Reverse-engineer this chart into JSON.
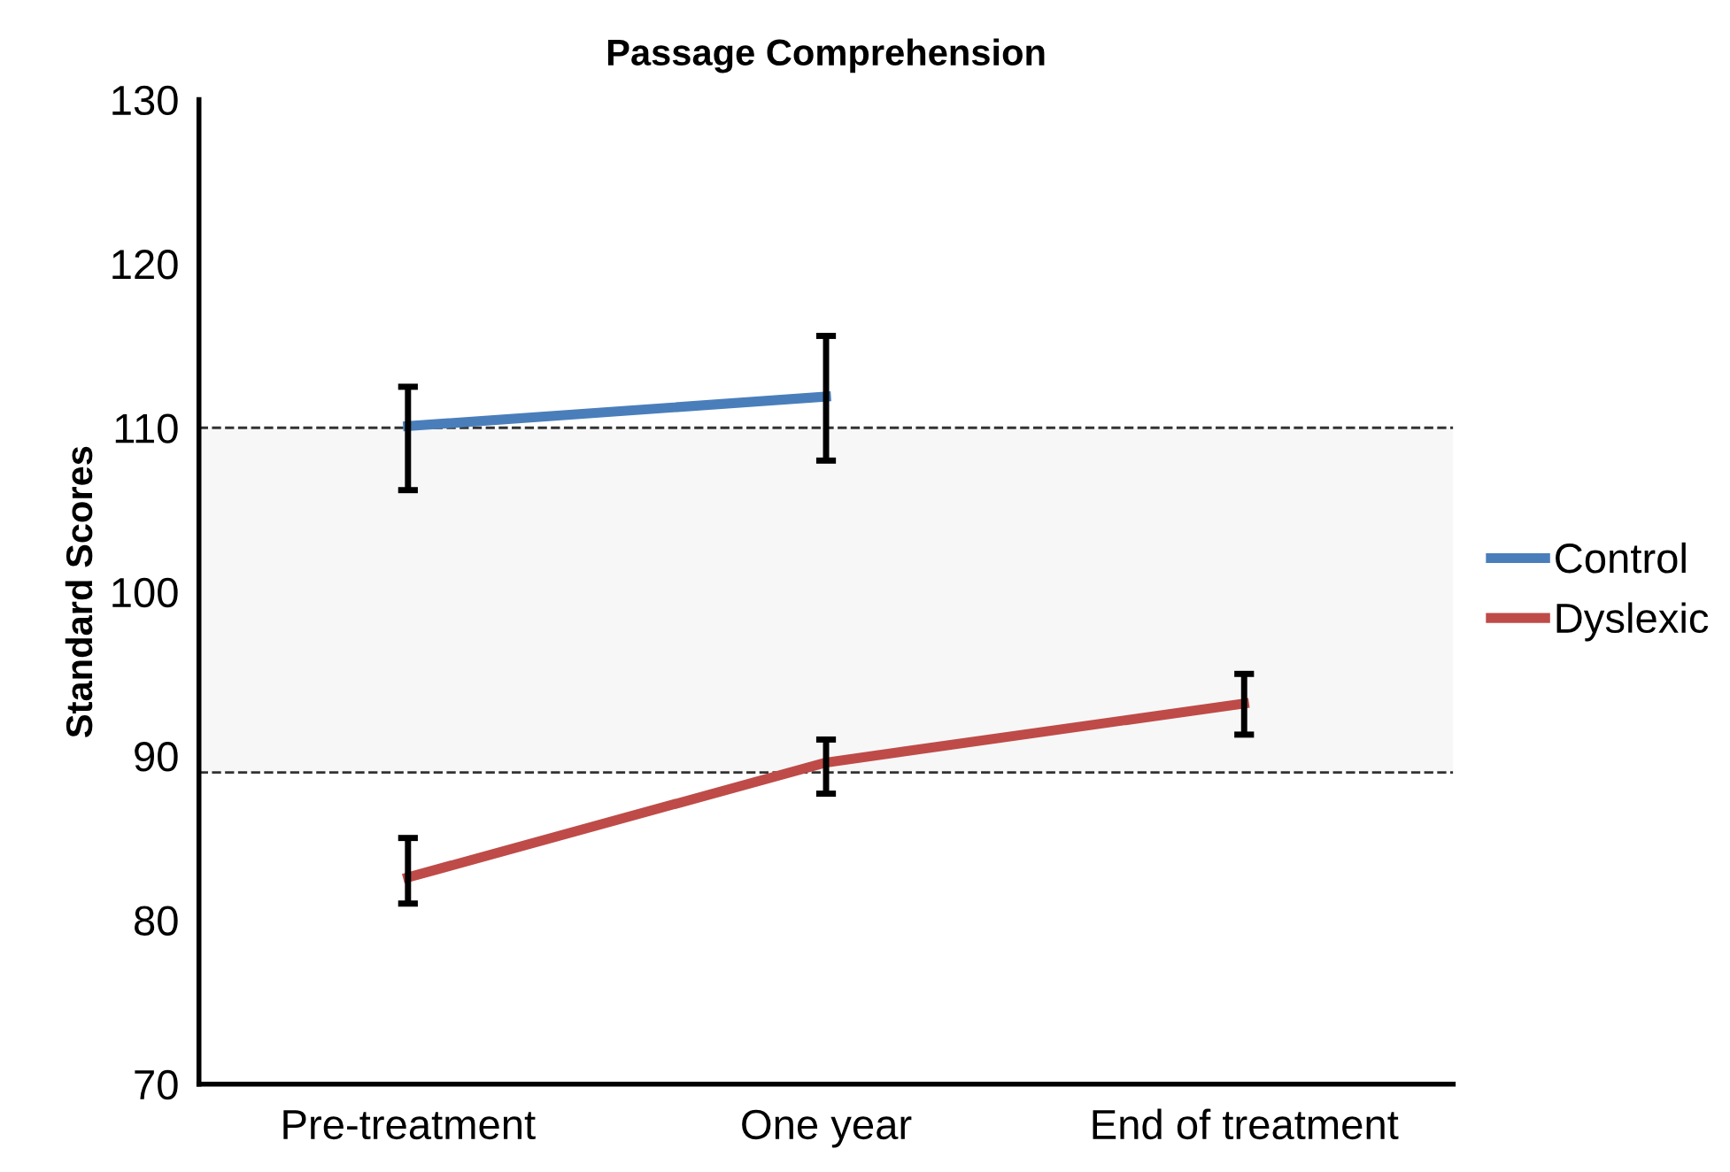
{
  "chart_data": {
    "type": "line",
    "title": "Passage Comprehension",
    "ylabel": "Standard Scores",
    "categories": [
      "Pre-treatment",
      "One year",
      "End of treatment"
    ],
    "ylim": [
      70,
      130
    ],
    "yticks": [
      70,
      80,
      90,
      100,
      110,
      120,
      130
    ],
    "grid": false,
    "legend": "right",
    "marker": "none",
    "line_style": "solid",
    "series": [
      {
        "name": "Control",
        "color": "#4a7ebb",
        "values": [
          110.1,
          111.9,
          null
        ],
        "errors": [
          [
            106.2,
            112.5
          ],
          [
            108.0,
            115.6
          ],
          null
        ]
      },
      {
        "name": "Dyslexic",
        "color": "#be4b48",
        "values": [
          82.6,
          89.6,
          93.2
        ],
        "errors": [
          [
            81.0,
            85.0
          ],
          [
            87.7,
            91.0
          ],
          [
            91.3,
            95.0
          ]
        ]
      }
    ],
    "ref_lines": [
      {
        "axis": "y",
        "value": 110,
        "line_style": "dashed",
        "color": "#333333"
      },
      {
        "axis": "y",
        "value": 89,
        "line_style": "dashed",
        "color": "#333333"
      }
    ],
    "bands": [
      {
        "axis": "y",
        "from": 89,
        "to": 110,
        "color": "#f7f7f7"
      }
    ]
  }
}
